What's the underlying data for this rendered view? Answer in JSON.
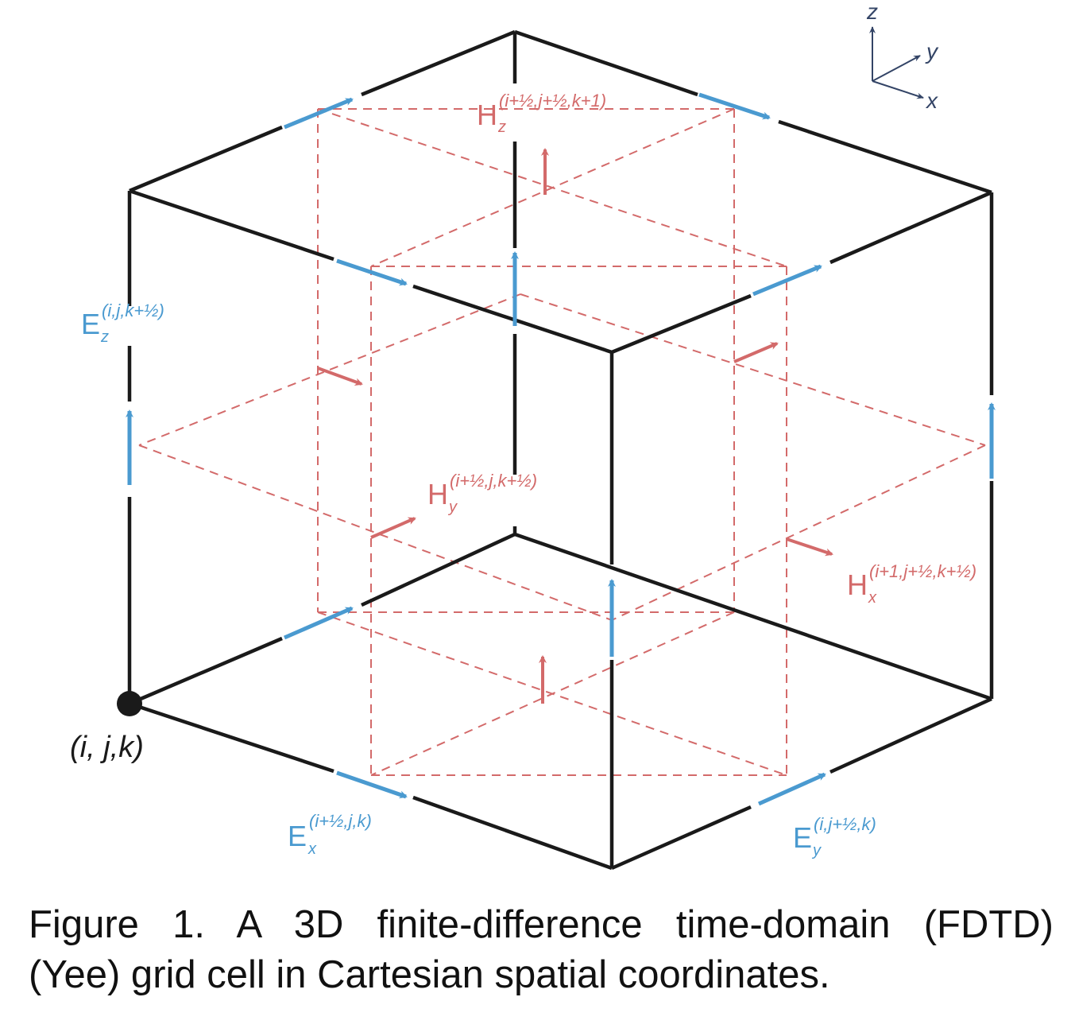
{
  "colors": {
    "edge": "#1a1a1a",
    "electric": "#4a9ad0",
    "magnetic": "#d36a6a",
    "background": "#ffffff"
  },
  "axes": {
    "z": "z",
    "y": "y",
    "x": "x"
  },
  "origin_label": "(i, j,k)",
  "labels": {
    "ez": {
      "main": "E",
      "sub": "z",
      "sup": "(i,j,k+½)"
    },
    "ex": {
      "main": "E",
      "sub": "x",
      "sup": "(i+½,j,k)"
    },
    "ey": {
      "main": "E",
      "sub": "y",
      "sup": "(i,j+½,k)"
    },
    "hz": {
      "main": "H",
      "sub": "z",
      "sup": "(i+½,j+½,k+1)"
    },
    "hy": {
      "main": "H",
      "sub": "y",
      "sup": "(i+½,j,k+½)"
    },
    "hx": {
      "main": "H",
      "sub": "x",
      "sup": "(i+1,j+½,k+½)"
    }
  },
  "caption": {
    "line1": "Figure 1. A 3D finite-difference time-domain (FDTD)",
    "line2": "(Yee) grid cell in Cartesian spatial coordinates."
  }
}
